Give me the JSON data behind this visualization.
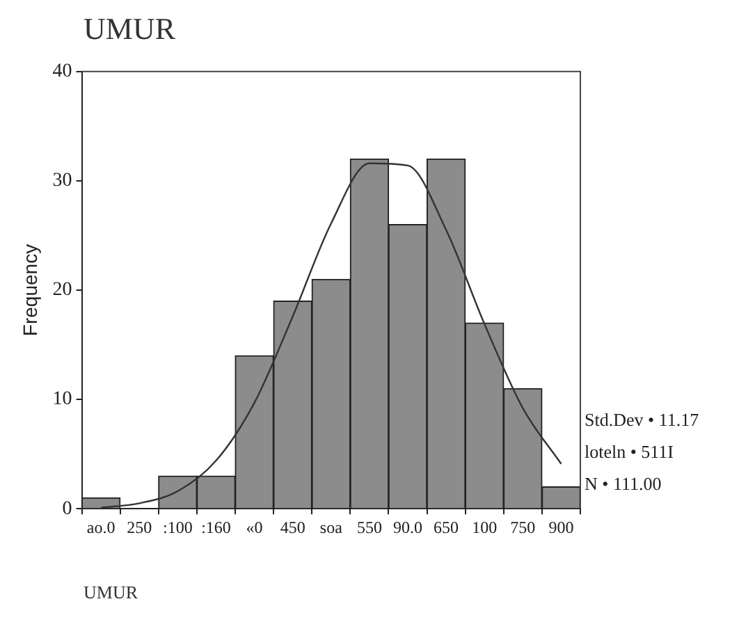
{
  "chart_data": {
    "type": "bar",
    "title": "UMUR",
    "xlabel": "UMUR",
    "ylabel": "Frequency",
    "categories": [
      "ao.0",
      "250",
      ":100",
      ":160",
      "«0",
      "450",
      "soa",
      "550",
      "90.0",
      "650",
      "100",
      "750",
      "900"
    ],
    "values": [
      1,
      0,
      3,
      3,
      14,
      19,
      21,
      32,
      26,
      32,
      17,
      11,
      2
    ],
    "color": "#8c8c8c",
    "series": [
      {
        "type": "line",
        "color": "#333333",
        "x": [
          "ao.0",
          "250",
          ":100",
          ":160",
          "«0",
          "450",
          "soa",
          "550",
          "90.0",
          "650",
          "100",
          "750",
          "900"
        ],
        "values": [
          0.1,
          0.5,
          1.6,
          4.4,
          9.7,
          17.6,
          26.1,
          31.6,
          31.4,
          25.5,
          16.9,
          9.2,
          4.1
        ]
      }
    ],
    "marker": "none",
    "ylim": [
      0,
      40
    ],
    "yticks": [
      0,
      10,
      20,
      30,
      40
    ],
    "grid": false,
    "legend": false,
    "annotations": [
      "Std.Dev • 11.17",
      "loteln • 511I",
      "N • 111.00"
    ]
  }
}
